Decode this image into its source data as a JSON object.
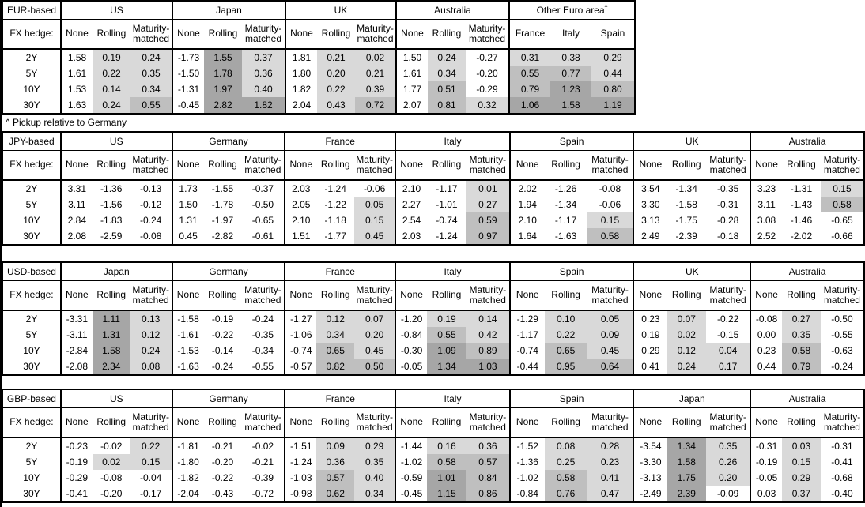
{
  "note": "^ Pickup relative to Germany",
  "labels": {
    "fx_hedge": "FX hedge:",
    "tenors": [
      "2Y",
      "5Y",
      "10Y",
      "30Y"
    ],
    "hedge_columns": [
      "None",
      "Rolling",
      "Maturity-matched"
    ]
  },
  "shade_colors": {
    "none": "#FFFFFF",
    "light": "#D9D9D9",
    "medium": "#BFBFBF",
    "dark": "#A6A6A6"
  },
  "shade_thresholds": {
    "light_above": 0,
    "medium_at": 0.5,
    "dark_at": 1.0
  },
  "tables": [
    {
      "base": "EUR-based",
      "sections": [
        {
          "country": "US",
          "columns": [
            "None",
            "Rolling",
            "Maturity-matched"
          ],
          "shade_from": 1,
          "rows": [
            [
              1.58,
              0.19,
              0.24
            ],
            [
              1.61,
              0.22,
              0.35
            ],
            [
              1.53,
              0.14,
              0.34
            ],
            [
              1.63,
              0.24,
              0.55
            ]
          ]
        },
        {
          "country": "Japan",
          "columns": [
            "None",
            "Rolling",
            "Maturity-matched"
          ],
          "shade_from": 1,
          "rows": [
            [
              -1.73,
              1.55,
              0.37
            ],
            [
              -1.5,
              1.78,
              0.36
            ],
            [
              -1.31,
              1.97,
              0.4
            ],
            [
              -0.45,
              2.82,
              1.82
            ]
          ]
        },
        {
          "country": "UK",
          "columns": [
            "None",
            "Rolling",
            "Maturity-matched"
          ],
          "shade_from": 1,
          "rows": [
            [
              1.81,
              0.21,
              0.02
            ],
            [
              1.8,
              0.2,
              0.21
            ],
            [
              1.82,
              0.22,
              0.39
            ],
            [
              2.04,
              0.43,
              0.72
            ]
          ]
        },
        {
          "country": "Australia",
          "columns": [
            "None",
            "Rolling",
            "Maturity-matched"
          ],
          "shade_from": 1,
          "rows": [
            [
              1.5,
              0.24,
              -0.27
            ],
            [
              1.61,
              0.34,
              -0.2
            ],
            [
              1.77,
              0.51,
              -0.29
            ],
            [
              2.07,
              0.81,
              0.32
            ]
          ]
        },
        {
          "country": "Other Euro area",
          "sup": "^",
          "columns": [
            "France",
            "Italy",
            "Spain"
          ],
          "shade_from": 0,
          "rows": [
            [
              0.31,
              0.38,
              0.29
            ],
            [
              0.55,
              0.77,
              0.44
            ],
            [
              0.79,
              1.23,
              0.8
            ],
            [
              1.06,
              1.58,
              1.19
            ]
          ]
        }
      ]
    },
    {
      "base": "JPY-based",
      "sections": [
        {
          "country": "US",
          "columns": [
            "None",
            "Rolling",
            "Maturity-matched"
          ],
          "shade_from": 1,
          "rows": [
            [
              3.31,
              -1.36,
              -0.13
            ],
            [
              3.11,
              -1.56,
              -0.12
            ],
            [
              2.84,
              -1.83,
              -0.24
            ],
            [
              2.08,
              -2.59,
              -0.08
            ]
          ]
        },
        {
          "country": "Germany",
          "columns": [
            "None",
            "Rolling",
            "Maturity-matched"
          ],
          "shade_from": 1,
          "rows": [
            [
              1.73,
              -1.55,
              -0.37
            ],
            [
              1.5,
              -1.78,
              -0.5
            ],
            [
              1.31,
              -1.97,
              -0.65
            ],
            [
              0.45,
              -2.82,
              -0.61
            ]
          ]
        },
        {
          "country": "France",
          "columns": [
            "None",
            "Rolling",
            "Maturity-matched"
          ],
          "shade_from": 1,
          "rows": [
            [
              2.03,
              -1.24,
              -0.06
            ],
            [
              2.05,
              -1.22,
              0.05
            ],
            [
              2.1,
              -1.18,
              0.15
            ],
            [
              1.51,
              -1.77,
              0.45
            ]
          ]
        },
        {
          "country": "Italy",
          "columns": [
            "None",
            "Rolling",
            "Maturity-matched"
          ],
          "shade_from": 1,
          "rows": [
            [
              2.1,
              -1.17,
              0.01
            ],
            [
              2.27,
              -1.01,
              0.27
            ],
            [
              2.54,
              -0.74,
              0.59
            ],
            [
              2.03,
              -1.24,
              0.97
            ]
          ]
        },
        {
          "country": "Spain",
          "columns": [
            "None",
            "Rolling",
            "Maturity-matched"
          ],
          "shade_from": 1,
          "rows": [
            [
              2.02,
              -1.26,
              -0.08
            ],
            [
              1.94,
              -1.34,
              -0.06
            ],
            [
              2.1,
              -1.17,
              0.15
            ],
            [
              1.64,
              -1.63,
              0.58
            ]
          ]
        },
        {
          "country": "UK",
          "columns": [
            "None",
            "Rolling",
            "Maturity-matched"
          ],
          "shade_from": 1,
          "rows": [
            [
              3.54,
              -1.34,
              -0.35
            ],
            [
              3.3,
              -1.58,
              -0.31
            ],
            [
              3.13,
              -1.75,
              -0.28
            ],
            [
              2.49,
              -2.39,
              -0.18
            ]
          ]
        },
        {
          "country": "Australia",
          "columns": [
            "None",
            "Rolling",
            "Maturity-matched"
          ],
          "shade_from": 1,
          "rows": [
            [
              3.23,
              -1.31,
              0.15
            ],
            [
              3.11,
              -1.43,
              0.58
            ],
            [
              3.08,
              -1.46,
              -0.65
            ],
            [
              2.52,
              -2.02,
              -0.66
            ]
          ]
        }
      ]
    },
    {
      "base": "USD-based",
      "sections": [
        {
          "country": "Japan",
          "columns": [
            "None",
            "Rolling",
            "Maturity-matched"
          ],
          "shade_from": 1,
          "rows": [
            [
              -3.31,
              1.11,
              0.13
            ],
            [
              -3.11,
              1.31,
              0.12
            ],
            [
              -2.84,
              1.58,
              0.24
            ],
            [
              -2.08,
              2.34,
              0.08
            ]
          ]
        },
        {
          "country": "Germany",
          "columns": [
            "None",
            "Rolling",
            "Maturity-matched"
          ],
          "shade_from": 1,
          "rows": [
            [
              -1.58,
              -0.19,
              -0.24
            ],
            [
              -1.61,
              -0.22,
              -0.35
            ],
            [
              -1.53,
              -0.14,
              -0.34
            ],
            [
              -1.63,
              -0.24,
              -0.55
            ]
          ]
        },
        {
          "country": "France",
          "columns": [
            "None",
            "Rolling",
            "Maturity-matched"
          ],
          "shade_from": 1,
          "rows": [
            [
              -1.27,
              0.12,
              0.07
            ],
            [
              -1.06,
              0.34,
              0.2
            ],
            [
              -0.74,
              0.65,
              0.45
            ],
            [
              -0.57,
              0.82,
              0.5
            ]
          ]
        },
        {
          "country": "Italy",
          "columns": [
            "None",
            "Rolling",
            "Maturity-matched"
          ],
          "shade_from": 1,
          "rows": [
            [
              -1.2,
              0.19,
              0.14
            ],
            [
              -0.84,
              0.55,
              0.42
            ],
            [
              -0.3,
              1.09,
              0.89
            ],
            [
              -0.05,
              1.34,
              1.03
            ]
          ]
        },
        {
          "country": "Spain",
          "columns": [
            "None",
            "Rolling",
            "Maturity-matched"
          ],
          "shade_from": 1,
          "rows": [
            [
              -1.29,
              0.1,
              0.05
            ],
            [
              -1.17,
              0.22,
              0.09
            ],
            [
              -0.74,
              0.65,
              0.45
            ],
            [
              -0.44,
              0.95,
              0.64
            ]
          ]
        },
        {
          "country": "UK",
          "columns": [
            "None",
            "Rolling",
            "Maturity-matched"
          ],
          "shade_from": 1,
          "rows": [
            [
              0.23,
              0.07,
              -0.22
            ],
            [
              0.19,
              0.02,
              -0.15
            ],
            [
              0.29,
              0.12,
              0.04
            ],
            [
              0.41,
              0.24,
              0.17
            ]
          ]
        },
        {
          "country": "Australia",
          "columns": [
            "None",
            "Rolling",
            "Maturity-matched"
          ],
          "shade_from": 1,
          "rows": [
            [
              -0.08,
              0.27,
              -0.5
            ],
            [
              0.0,
              0.35,
              -0.55
            ],
            [
              0.23,
              0.58,
              -0.63
            ],
            [
              0.44,
              0.79,
              -0.24
            ]
          ]
        }
      ]
    },
    {
      "base": "GBP-based",
      "sections": [
        {
          "country": "US",
          "columns": [
            "None",
            "Rolling",
            "Maturity-matched"
          ],
          "shade_from": 1,
          "rows": [
            [
              -0.23,
              -0.02,
              0.22
            ],
            [
              -0.19,
              0.02,
              0.15
            ],
            [
              -0.29,
              -0.08,
              -0.04
            ],
            [
              -0.41,
              -0.2,
              -0.17
            ]
          ]
        },
        {
          "country": "Germany",
          "columns": [
            "None",
            "Rolling",
            "Maturity-matched"
          ],
          "shade_from": 1,
          "rows": [
            [
              -1.81,
              -0.21,
              -0.02
            ],
            [
              -1.8,
              -0.2,
              -0.21
            ],
            [
              -1.82,
              -0.22,
              -0.39
            ],
            [
              -2.04,
              -0.43,
              -0.72
            ]
          ]
        },
        {
          "country": "France",
          "columns": [
            "None",
            "Rolling",
            "Maturity-matched"
          ],
          "shade_from": 1,
          "rows": [
            [
              -1.51,
              0.09,
              0.29
            ],
            [
              -1.24,
              0.36,
              0.35
            ],
            [
              -1.03,
              0.57,
              0.4
            ],
            [
              -0.98,
              0.62,
              0.34
            ]
          ]
        },
        {
          "country": "Italy",
          "columns": [
            "None",
            "Rolling",
            "Maturity-matched"
          ],
          "shade_from": 1,
          "rows": [
            [
              -1.44,
              0.16,
              0.36
            ],
            [
              -1.02,
              0.58,
              0.57
            ],
            [
              -0.59,
              1.01,
              0.84
            ],
            [
              -0.45,
              1.15,
              0.86
            ]
          ]
        },
        {
          "country": "Spain",
          "columns": [
            "None",
            "Rolling",
            "Maturity-matched"
          ],
          "shade_from": 1,
          "rows": [
            [
              -1.52,
              0.08,
              0.28
            ],
            [
              -1.36,
              0.25,
              0.23
            ],
            [
              -1.02,
              0.58,
              0.41
            ],
            [
              -0.84,
              0.76,
              0.47
            ]
          ]
        },
        {
          "country": "Japan",
          "columns": [
            "None",
            "Rolling",
            "Maturity-matched"
          ],
          "shade_from": 1,
          "rows": [
            [
              -3.54,
              1.34,
              0.35
            ],
            [
              -3.3,
              1.58,
              0.26
            ],
            [
              -3.13,
              1.75,
              0.2
            ],
            [
              -2.49,
              2.39,
              -0.09
            ]
          ]
        },
        {
          "country": "Australia",
          "columns": [
            "None",
            "Rolling",
            "Maturity-matched"
          ],
          "shade_from": 1,
          "rows": [
            [
              -0.31,
              0.03,
              -0.31
            ],
            [
              -0.19,
              0.15,
              -0.41
            ],
            [
              -0.05,
              0.29,
              -0.68
            ],
            [
              0.03,
              0.37,
              -0.4
            ]
          ]
        }
      ]
    }
  ]
}
